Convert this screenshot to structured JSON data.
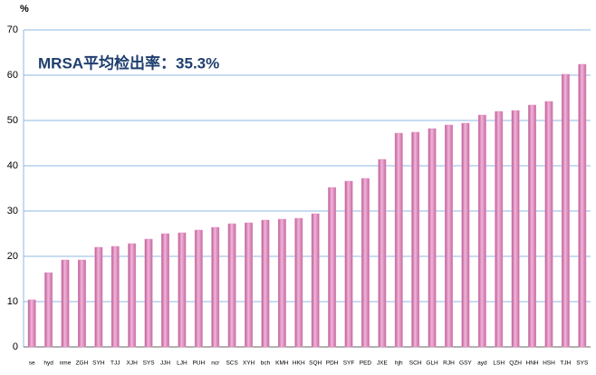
{
  "chart_data": {
    "type": "bar",
    "unit_label": "%",
    "annotation": "MRSA平均检出率：35.3%",
    "categories": [
      "se",
      "hyd",
      "nme",
      "ZGH",
      "SYH",
      "TJJ",
      "XJH",
      "SYS",
      "JJH",
      "LJH",
      "PUH",
      "ncr",
      "SCS",
      "XYH",
      "bch",
      "KMH",
      "HKH",
      "SQH",
      "PDH",
      "SYF",
      "PED",
      "JXE",
      "hjh",
      "SCH",
      "GLH",
      "RJH",
      "GSY",
      "ayd",
      "LSH",
      "QZH",
      "HNH",
      "HSH",
      "TJH",
      "SYS"
    ],
    "values": [
      10.4,
      16.4,
      19.2,
      19.2,
      22,
      22.2,
      22.8,
      23.8,
      25,
      25.2,
      25.8,
      26.4,
      27.2,
      27.4,
      28,
      28.2,
      28.4,
      29.4,
      35.2,
      36.6,
      37.2,
      41.4,
      47.2,
      47.4,
      48.2,
      49,
      49.4,
      51.2,
      52,
      52.2,
      53.4,
      54.2,
      60.2,
      62.4
    ],
    "color": "#e38fc0",
    "ylim": [
      0,
      70
    ],
    "yticks": [
      0,
      10,
      20,
      30,
      40,
      50,
      60,
      70
    ],
    "grid": true
  }
}
